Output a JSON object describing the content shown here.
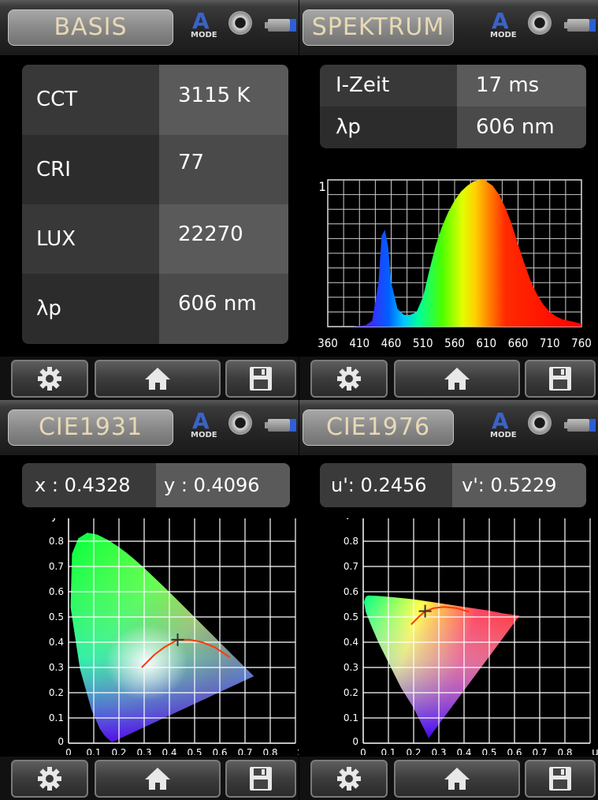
{
  "panels": {
    "basis": {
      "title": "BASIS",
      "rows": [
        {
          "label": "CCT",
          "value": "3115 K"
        },
        {
          "label": "CRI",
          "value": "77"
        },
        {
          "label": "LUX",
          "value": "22270"
        },
        {
          "label": "λp",
          "value": "606 nm"
        }
      ]
    },
    "spektrum": {
      "title": "SPEKTRUM",
      "rows": [
        {
          "label": "I-Zeit",
          "value": "17 ms"
        },
        {
          "label": "λp",
          "value": "606 nm"
        }
      ],
      "y_tick_label": "1",
      "x_ticks": [
        "360",
        "410",
        "460",
        "510",
        "560",
        "610",
        "660",
        "710",
        "760"
      ]
    },
    "cie1931": {
      "title": "CIE1931",
      "x_label": "x :",
      "x_value": "0.4328",
      "y_label": "y :",
      "y_value": "0.4096",
      "axis_x": "x",
      "axis_y": "y",
      "x_ticks": [
        "0",
        "0.1",
        "0.2",
        "0.3",
        "0.4",
        "0.5",
        "0.6",
        "0.7",
        "0.8"
      ],
      "y_ticks": [
        "0",
        "0.1",
        "0.2",
        "0.3",
        "0.4",
        "0.5",
        "0.6",
        "0.7",
        "0.8"
      ]
    },
    "cie1976": {
      "title": "CIE1976",
      "u_label": "u':",
      "u_value": "0.2456",
      "v_label": "v':",
      "v_value": "0.5229",
      "axis_x": "u'",
      "axis_y": "v'",
      "x_ticks": [
        "0",
        "0.1",
        "0.2",
        "0.3",
        "0.4",
        "0.5",
        "0.6",
        "0.7",
        "0.8"
      ],
      "y_ticks": [
        "0",
        "0.1",
        "0.2",
        "0.3",
        "0.4",
        "0.5",
        "0.6",
        "0.7",
        "0.8"
      ]
    }
  },
  "mode_icon": {
    "letter": "A",
    "caption": "MODE"
  },
  "icons": [
    "gear-icon",
    "home-icon",
    "save-icon",
    "shutter-icon",
    "battery-icon"
  ],
  "chart_data": [
    {
      "type": "line",
      "x": [
        360,
        380,
        400,
        420,
        430,
        440,
        445,
        450,
        455,
        460,
        470,
        480,
        490,
        500,
        510,
        520,
        530,
        540,
        550,
        560,
        570,
        580,
        590,
        600,
        606,
        610,
        620,
        630,
        640,
        650,
        660,
        670,
        680,
        690,
        700,
        710,
        720,
        730,
        740,
        750,
        760
      ],
      "series": [
        {
          "values": [
            0.0,
            0.0,
            0.0,
            0.01,
            0.04,
            0.3,
            0.62,
            0.66,
            0.55,
            0.3,
            0.12,
            0.08,
            0.08,
            0.1,
            0.2,
            0.38,
            0.55,
            0.68,
            0.78,
            0.86,
            0.92,
            0.96,
            0.99,
            1.0,
            1.0,
            0.99,
            0.96,
            0.9,
            0.81,
            0.7,
            0.56,
            0.43,
            0.31,
            0.22,
            0.15,
            0.1,
            0.07,
            0.05,
            0.04,
            0.03,
            0.02
          ]
        }
      ],
      "xlim": [
        360,
        760
      ],
      "ylim": [
        0,
        1
      ]
    },
    {
      "type": "scatter",
      "x": [
        0.4328
      ],
      "y": [
        0.4096
      ],
      "xlim": [
        0,
        0.8
      ],
      "ylim": [
        0,
        0.8
      ],
      "planckian": {
        "x": [
          0.29,
          0.34,
          0.38,
          0.4328,
          0.48,
          0.53,
          0.58,
          0.64
        ],
        "y": [
          0.3,
          0.35,
          0.38,
          0.4096,
          0.41,
          0.4,
          0.38,
          0.34
        ]
      },
      "locus_x": [
        0.1741,
        0.1738,
        0.1736,
        0.1733,
        0.1726,
        0.171,
        0.1689,
        0.1644,
        0.1566,
        0.144,
        0.1241,
        0.0913,
        0.0454,
        0.0082,
        0.0139,
        0.0389,
        0.0743,
        0.1142,
        0.1547,
        0.1929,
        0.2296,
        0.2658,
        0.3016,
        0.3373,
        0.3731,
        0.4087,
        0.4441,
        0.4788,
        0.5125,
        0.5448,
        0.5752,
        0.6029,
        0.627,
        0.6482,
        0.6658,
        0.6801,
        0.6915,
        0.7006,
        0.7079,
        0.714,
        0.719,
        0.7347
      ],
      "locus_y": [
        0.005,
        0.0049,
        0.0049,
        0.0048,
        0.0048,
        0.0051,
        0.0069,
        0.0109,
        0.0177,
        0.0297,
        0.0578,
        0.1327,
        0.295,
        0.5384,
        0.7502,
        0.812,
        0.8338,
        0.8262,
        0.8059,
        0.7816,
        0.7543,
        0.7243,
        0.6923,
        0.6589,
        0.6245,
        0.5896,
        0.5547,
        0.5202,
        0.4866,
        0.4544,
        0.4242,
        0.3965,
        0.3725,
        0.3514,
        0.334,
        0.3197,
        0.3083,
        0.2993,
        0.292,
        0.2859,
        0.2809,
        0.2653
      ]
    },
    {
      "type": "scatter",
      "x": [
        0.2456
      ],
      "y": [
        0.5229
      ],
      "xlim": [
        0,
        0.8
      ],
      "ylim": [
        0,
        0.8
      ],
      "planckian": {
        "u": [
          0.19,
          0.22,
          0.2456,
          0.28,
          0.32,
          0.37,
          0.42
        ],
        "v": [
          0.47,
          0.5,
          0.5229,
          0.535,
          0.54,
          0.535,
          0.52
        ]
      }
    }
  ]
}
